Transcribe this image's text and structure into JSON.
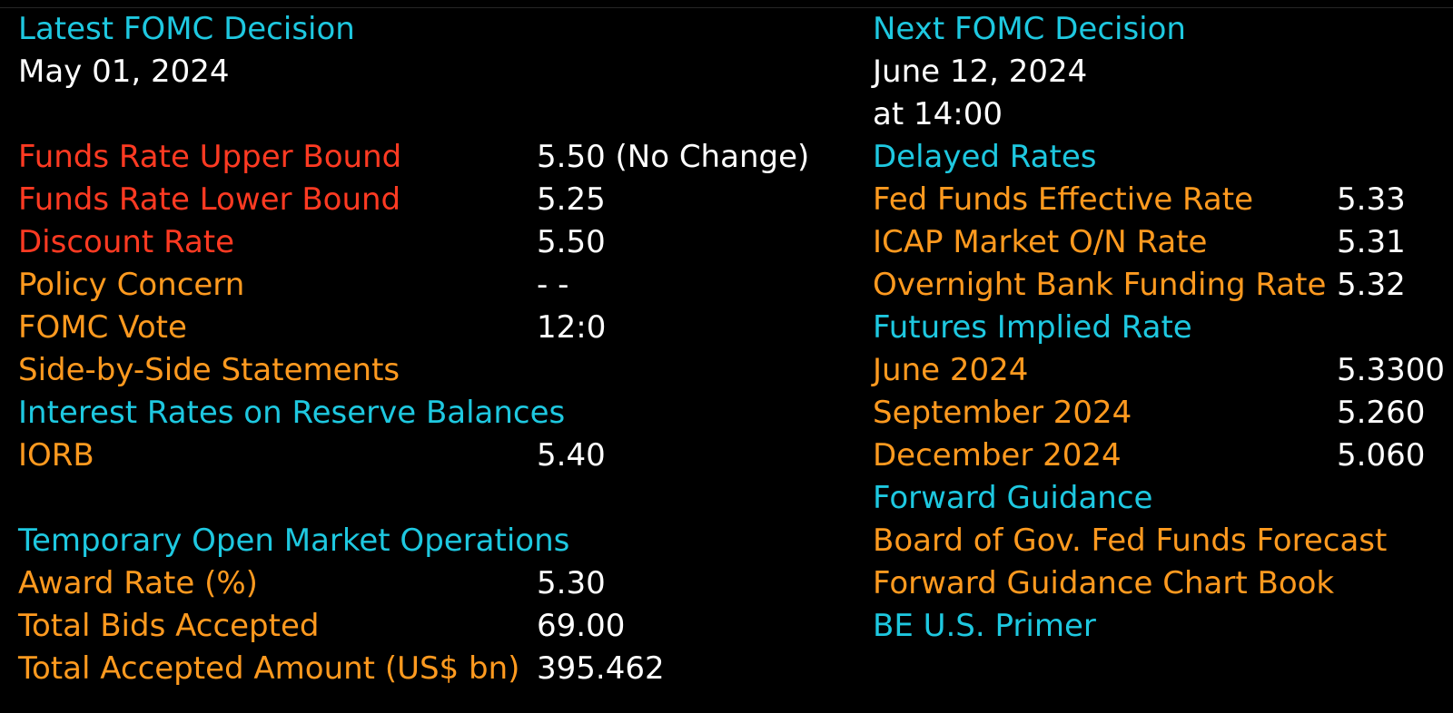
{
  "colors": {
    "header": "#1ec8e0",
    "value": "#ffffff",
    "alert_label": "#ff3a22",
    "label": "#ff9a1f",
    "background": "#000000"
  },
  "latest": {
    "heading": "Latest FOMC Decision",
    "date": "May 01, 2024",
    "upper_bound": {
      "label": "Funds Rate Upper Bound",
      "value": "5.50 (No Change)"
    },
    "lower_bound": {
      "label": "Funds Rate Lower Bound",
      "value": "5.25"
    },
    "discount": {
      "label": "Discount Rate",
      "value": "5.50"
    },
    "policy": {
      "label": "Policy Concern",
      "value": "- -"
    },
    "vote": {
      "label": "FOMC Vote",
      "value": "12:0"
    },
    "side_by_side": "Side-by-Side Statements"
  },
  "reserves": {
    "heading": "Interest Rates on Reserve Balances",
    "iorb": {
      "label": "IORB",
      "value": "5.40"
    }
  },
  "tomo": {
    "heading": "Temporary Open Market Operations",
    "award_rate": {
      "label": "Award Rate (%)",
      "value": "5.30"
    },
    "bids": {
      "label": "Total Bids Accepted",
      "value": "69.00"
    },
    "amount": {
      "label": "Total Accepted Amount (US$ bn)",
      "value": "395.462"
    }
  },
  "next": {
    "heading": "Next FOMC Decision",
    "date": "June 12, 2024",
    "time": "at 14:00"
  },
  "delayed": {
    "heading": "Delayed Rates",
    "effective": {
      "label": "Fed Funds Effective Rate",
      "value": "5.33"
    },
    "icap": {
      "label": "ICAP Market O/N Rate",
      "value": "5.31"
    },
    "obfr": {
      "label": "Overnight Bank Funding Rate",
      "value": "5.32"
    }
  },
  "futures": {
    "heading": "Futures Implied Rate",
    "rows": [
      {
        "label": "June 2024",
        "value": "5.3300"
      },
      {
        "label": "September 2024",
        "value": "5.260"
      },
      {
        "label": "December 2024",
        "value": "5.060"
      }
    ]
  },
  "guidance": {
    "heading": "Forward Guidance",
    "board_forecast": "Board of Gov. Fed Funds Forecast",
    "chart_book": "Forward Guidance Chart Book",
    "primer": "BE U.S. Primer"
  }
}
